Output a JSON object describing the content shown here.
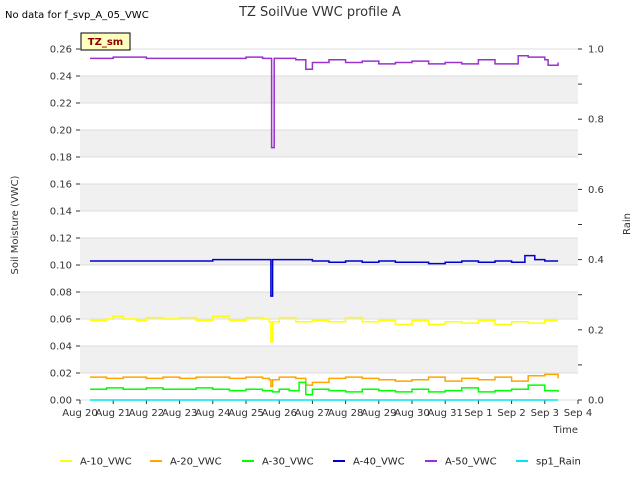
{
  "chart_data": {
    "type": "line",
    "title": "TZ SoilVue VWC profile A",
    "no_data_note": "No data for f_svp_A_05_VWC",
    "station_badge": "TZ_sm",
    "xlabel": "Time",
    "ylabel": "Soil Moisture (VWC)",
    "y2label": "Rain",
    "xlim": [
      0,
      15
    ],
    "ylim": [
      0,
      0.26
    ],
    "y2lim": [
      0,
      1.0
    ],
    "x_ticks": [
      0,
      1,
      2,
      3,
      4,
      5,
      6,
      7,
      8,
      9,
      10,
      11,
      12,
      13,
      14,
      15
    ],
    "x_tick_labels": [
      "Aug 20",
      "Aug 21",
      "Aug 22",
      "Aug 23",
      "Aug 24",
      "Aug 25",
      "Aug 26",
      "Aug 27",
      "Aug 28",
      "Aug 29",
      "Aug 30",
      "Aug 31",
      "Sep 1",
      "Sep 2",
      "Sep 3",
      "Sep 4"
    ],
    "y_ticks": [
      0.0,
      0.02,
      0.04,
      0.06,
      0.08,
      0.1,
      0.12,
      0.14,
      0.16,
      0.18,
      0.2,
      0.22,
      0.24,
      0.26
    ],
    "y_tick_labels": [
      "0.00",
      "0.02",
      "0.04",
      "0.06",
      "0.08",
      "0.10",
      "0.12",
      "0.14",
      "0.16",
      "0.18",
      "0.20",
      "0.22",
      "0.24",
      "0.26"
    ],
    "y2_ticks": [
      0.0,
      0.2,
      0.4,
      0.6,
      0.8,
      1.0
    ],
    "y2_tick_labels": [
      "0.0",
      "0.2",
      "0.4",
      "0.6",
      "0.8",
      "1.0"
    ],
    "legend_position": "bottom",
    "series": [
      {
        "name": "A-10_VWC",
        "color": "#ffff00",
        "axis": "left",
        "x": [
          0.3,
          0.8,
          1.0,
          1.3,
          1.7,
          2.0,
          2.5,
          3.0,
          3.5,
          4.0,
          4.5,
          5.0,
          5.5,
          5.7,
          5.75,
          5.8,
          6.0,
          6.5,
          7.0,
          7.5,
          8.0,
          8.5,
          9.0,
          9.5,
          10.0,
          10.5,
          11.0,
          11.5,
          12.0,
          12.5,
          13.0,
          13.5,
          14.0,
          14.4
        ],
        "values": [
          0.059,
          0.06,
          0.062,
          0.06,
          0.059,
          0.061,
          0.06,
          0.061,
          0.059,
          0.062,
          0.059,
          0.061,
          0.06,
          0.058,
          0.043,
          0.058,
          0.061,
          0.058,
          0.059,
          0.058,
          0.061,
          0.058,
          0.059,
          0.056,
          0.059,
          0.056,
          0.058,
          0.057,
          0.059,
          0.056,
          0.058,
          0.057,
          0.059,
          0.059
        ]
      },
      {
        "name": "A-20_VWC",
        "color": "#ffa500",
        "axis": "left",
        "x": [
          0.3,
          0.8,
          1.3,
          2.0,
          2.5,
          3.0,
          3.5,
          4.0,
          4.5,
          5.0,
          5.5,
          5.7,
          5.75,
          5.8,
          6.0,
          6.5,
          6.8,
          7.0,
          7.5,
          8.0,
          8.5,
          9.0,
          9.5,
          10.0,
          10.5,
          11.0,
          11.5,
          12.0,
          12.5,
          13.0,
          13.5,
          14.0,
          14.4
        ],
        "values": [
          0.017,
          0.016,
          0.017,
          0.016,
          0.017,
          0.016,
          0.017,
          0.017,
          0.016,
          0.017,
          0.016,
          0.015,
          0.01,
          0.015,
          0.017,
          0.016,
          0.011,
          0.013,
          0.016,
          0.017,
          0.016,
          0.015,
          0.014,
          0.015,
          0.017,
          0.014,
          0.016,
          0.015,
          0.017,
          0.014,
          0.018,
          0.019,
          0.016
        ]
      },
      {
        "name": "A-30_VWC",
        "color": "#00ff00",
        "axis": "left",
        "x": [
          0.3,
          0.8,
          1.3,
          2.0,
          2.5,
          3.0,
          3.5,
          4.0,
          4.5,
          5.0,
          5.5,
          5.8,
          6.0,
          6.3,
          6.6,
          6.8,
          7.0,
          7.5,
          8.0,
          8.5,
          9.0,
          9.5,
          10.0,
          10.5,
          11.0,
          11.5,
          12.0,
          12.5,
          13.0,
          13.5,
          14.0,
          14.4
        ],
        "values": [
          0.008,
          0.009,
          0.008,
          0.009,
          0.008,
          0.008,
          0.009,
          0.008,
          0.007,
          0.008,
          0.007,
          0.006,
          0.008,
          0.007,
          0.013,
          0.004,
          0.008,
          0.007,
          0.006,
          0.008,
          0.007,
          0.006,
          0.008,
          0.006,
          0.007,
          0.009,
          0.006,
          0.007,
          0.008,
          0.011,
          0.007,
          0.006
        ]
      },
      {
        "name": "A-40_VWC",
        "color": "#0000cd",
        "axis": "left",
        "x": [
          0.3,
          1.0,
          2.0,
          3.0,
          4.0,
          5.0,
          5.6,
          5.75,
          5.8,
          6.0,
          6.5,
          7.0,
          7.5,
          8.0,
          8.5,
          9.0,
          9.5,
          10.0,
          10.5,
          11.0,
          11.5,
          12.0,
          12.5,
          13.0,
          13.4,
          13.7,
          14.0,
          14.4
        ],
        "values": [
          0.103,
          0.103,
          0.103,
          0.103,
          0.104,
          0.104,
          0.104,
          0.077,
          0.104,
          0.104,
          0.104,
          0.103,
          0.102,
          0.103,
          0.102,
          0.103,
          0.102,
          0.102,
          0.101,
          0.102,
          0.103,
          0.102,
          0.103,
          0.102,
          0.107,
          0.104,
          0.103,
          0.103
        ]
      },
      {
        "name": "A-50_VWC",
        "color": "#9932cc",
        "axis": "left",
        "x": [
          0.3,
          1.0,
          2.0,
          3.0,
          4.0,
          5.0,
          5.5,
          5.7,
          5.77,
          5.85,
          6.0,
          6.5,
          6.8,
          7.0,
          7.5,
          8.0,
          8.5,
          9.0,
          9.5,
          10.0,
          10.5,
          11.0,
          11.5,
          12.0,
          12.5,
          13.0,
          13.2,
          13.5,
          14.0,
          14.1,
          14.4
        ],
        "values": [
          0.253,
          0.254,
          0.253,
          0.253,
          0.253,
          0.254,
          0.253,
          0.253,
          0.187,
          0.253,
          0.253,
          0.252,
          0.245,
          0.25,
          0.252,
          0.25,
          0.251,
          0.249,
          0.25,
          0.251,
          0.249,
          0.25,
          0.249,
          0.252,
          0.249,
          0.249,
          0.255,
          0.254,
          0.252,
          0.248,
          0.25
        ]
      },
      {
        "name": "sp1_Rain",
        "color": "#00e5ee",
        "axis": "right",
        "x": [
          0.3,
          14.4
        ],
        "values": [
          0.0,
          0.0
        ]
      }
    ]
  }
}
